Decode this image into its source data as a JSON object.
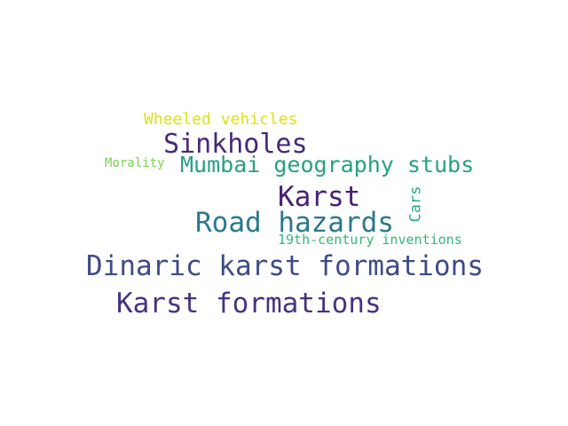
{
  "words": [
    {
      "text": "Wheeled vehicles",
      "color": "#dde318"
    },
    {
      "text": "Sinkholes",
      "color": "#482878"
    },
    {
      "text": "Morality",
      "color": "#7ad151"
    },
    {
      "text": "Mumbai geography stubs",
      "color": "#26a184"
    },
    {
      "text": "Karst",
      "color": "#482173"
    },
    {
      "text": "Road hazards",
      "color": "#2a788e"
    },
    {
      "text": "19th-century inventions",
      "color": "#35b779"
    },
    {
      "text": "Dinaric karst formations",
      "color": "#3e4a89"
    },
    {
      "text": "Karst formations",
      "color": "#46337e"
    },
    {
      "text": "Cars",
      "color": "#22a884"
    }
  ]
}
